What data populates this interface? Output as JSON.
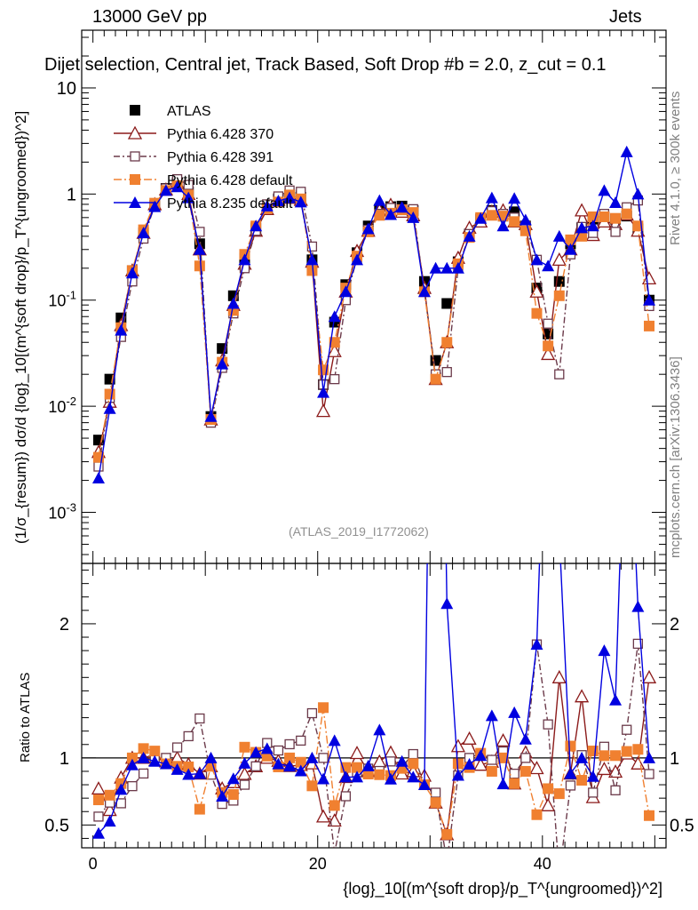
{
  "header": {
    "left": "13000 GeV pp",
    "right": "Jets",
    "subtitle": "Dijet selection, Central jet, Track Based, Soft Drop #b = 2.0, z_cut = 0.1",
    "rivet": "Rivet 4.1.0, ≥ 300k events",
    "mcplots": "mcplots.cern.ch [arXiv:1306.3436]",
    "analysis": "(ATLAS_2019_I1772062)"
  },
  "colors": {
    "ATLAS": "#000000",
    "Pythia 6.428 370": "#8b1a1a",
    "Pythia 6.428 391": "#6b3a4a",
    "Pythia 6.428 default": "#f08030",
    "Pythia 8.235 default": "#0000e0"
  },
  "chart_data": {
    "type": "line",
    "title": "Dijet selection, Central jet, Track Based, Soft Drop #b = 2.0, z_cut = 0.1",
    "xlabel": "{log}_10[(m^{soft drop}/p_T^{ungroomed})^2]",
    "ylabel_main": "(1/σ_{resum}) dσ/d {log}_10[(m^{soft drop}/p_T^{ungroomed})^2]",
    "ylabel_ratio": "Ratio to ATLAS",
    "xlim": [
      -1,
      51
    ],
    "ylim_main": [
      0.00033,
      35
    ],
    "ylim_ratio": [
      0.33,
      2.45
    ],
    "yscale_main": "log",
    "x_ticks": [
      0,
      20,
      40
    ],
    "x_tick_labels": [
      "0",
      "20",
      "40"
    ],
    "y_ticks_main": [
      0.001,
      0.01,
      0.1,
      1,
      10
    ],
    "y_tick_labels_main": [
      "10^-3",
      "10^-2",
      "10^-1",
      "1",
      "10"
    ],
    "y_ticks_ratio": [
      0.5,
      1,
      2
    ],
    "y_tick_labels_ratio": [
      "0.5",
      "1",
      "2"
    ],
    "legend_position": "top-left",
    "x": [
      0.5,
      1.5,
      2.5,
      3.5,
      4.5,
      5.5,
      6.5,
      7.5,
      8.5,
      9.5,
      10.5,
      11.5,
      12.5,
      13.5,
      14.5,
      15.5,
      16.5,
      17.5,
      18.5,
      19.5,
      20.5,
      21.5,
      22.5,
      23.5,
      24.5,
      25.5,
      26.5,
      27.5,
      28.5,
      29.5,
      30.5,
      31.5,
      32.5,
      33.5,
      34.5,
      35.5,
      36.5,
      37.5,
      38.5,
      39.5,
      40.5,
      41.5,
      42.5,
      43.5,
      44.5,
      45.5,
      46.5,
      47.5,
      48.5,
      49.5
    ],
    "series": [
      {
        "name": "ATLAS",
        "style": "square",
        "values": [
          0.0048,
          0.018,
          0.068,
          0.19,
          0.43,
          0.78,
          1.13,
          1.28,
          1.05,
          0.34,
          0.008,
          0.035,
          0.11,
          0.25,
          0.48,
          0.72,
          0.9,
          0.98,
          0.93,
          0.24,
          0.016,
          0.062,
          0.14,
          0.28,
          0.5,
          0.72,
          0.76,
          0.77,
          0.7,
          0.15,
          0.027,
          0.093,
          0.23,
          0.42,
          0.58,
          0.7,
          0.62,
          0.68,
          0.5,
          0.13,
          0.048,
          0.15,
          0.34,
          0.48,
          0.58,
          0.6,
          0.58,
          0.62,
          0.47,
          0.1
        ]
      },
      {
        "name": "Pythia 6.428 370",
        "style": "open-triangle",
        "values": [
          0.0037,
          0.011,
          0.058,
          0.19,
          0.43,
          0.8,
          1.1,
          1.28,
          1.0,
          0.3,
          0.0075,
          0.027,
          0.09,
          0.22,
          0.45,
          0.72,
          0.88,
          0.92,
          0.88,
          0.23,
          0.009,
          0.033,
          0.12,
          0.29,
          0.45,
          0.7,
          0.79,
          0.68,
          0.63,
          0.13,
          0.018,
          0.04,
          0.25,
          0.48,
          0.55,
          0.68,
          0.7,
          0.55,
          0.52,
          0.12,
          0.031,
          0.24,
          0.3,
          0.7,
          0.41,
          0.55,
          0.52,
          0.64,
          0.45,
          0.16
        ]
      },
      {
        "name": "Pythia 6.428 391",
        "style": "open-square",
        "values": [
          0.0027,
          0.012,
          0.045,
          0.15,
          0.38,
          0.78,
          1.13,
          1.38,
          1.22,
          0.44,
          0.007,
          0.023,
          0.075,
          0.2,
          0.45,
          0.8,
          0.95,
          1.08,
          1.05,
          0.32,
          0.016,
          0.018,
          0.1,
          0.25,
          0.46,
          0.65,
          0.74,
          0.72,
          0.72,
          0.12,
          0.02,
          0.021,
          0.2,
          0.42,
          0.6,
          0.69,
          0.65,
          0.6,
          0.5,
          0.24,
          0.06,
          0.02,
          0.27,
          0.49,
          0.43,
          0.65,
          0.44,
          0.75,
          0.87,
          0.088
        ]
      },
      {
        "name": "Pythia 6.428 default",
        "style": "filled-square",
        "values": [
          0.0033,
          0.013,
          0.055,
          0.19,
          0.46,
          0.82,
          1.08,
          1.2,
          0.98,
          0.21,
          0.0075,
          0.026,
          0.08,
          0.27,
          0.5,
          0.73,
          0.84,
          0.98,
          0.9,
          0.19,
          0.022,
          0.04,
          0.13,
          0.26,
          0.44,
          0.63,
          0.66,
          0.71,
          0.67,
          0.12,
          0.018,
          0.04,
          0.22,
          0.39,
          0.6,
          0.63,
          0.62,
          0.55,
          0.45,
          0.075,
          0.037,
          0.11,
          0.37,
          0.4,
          0.61,
          0.61,
          0.59,
          0.65,
          0.5,
          0.057
        ]
      },
      {
        "name": "Pythia 8.235 default",
        "style": "filled-triangle",
        "values": [
          0.0021,
          0.0095,
          0.052,
          0.18,
          0.43,
          0.76,
          1.08,
          1.17,
          0.92,
          0.3,
          0.008,
          0.025,
          0.093,
          0.24,
          0.5,
          0.77,
          0.86,
          0.92,
          0.84,
          0.24,
          0.0135,
          0.07,
          0.12,
          0.24,
          0.47,
          0.87,
          0.64,
          0.75,
          0.6,
          0.12,
          0.2,
          0.2,
          0.2,
          0.4,
          0.59,
          0.92,
          0.5,
          0.91,
          0.57,
          0.24,
          0.21,
          0.4,
          0.3,
          0.48,
          0.5,
          1.08,
          0.83,
          2.5,
          1.0,
          0.1
        ]
      }
    ]
  }
}
